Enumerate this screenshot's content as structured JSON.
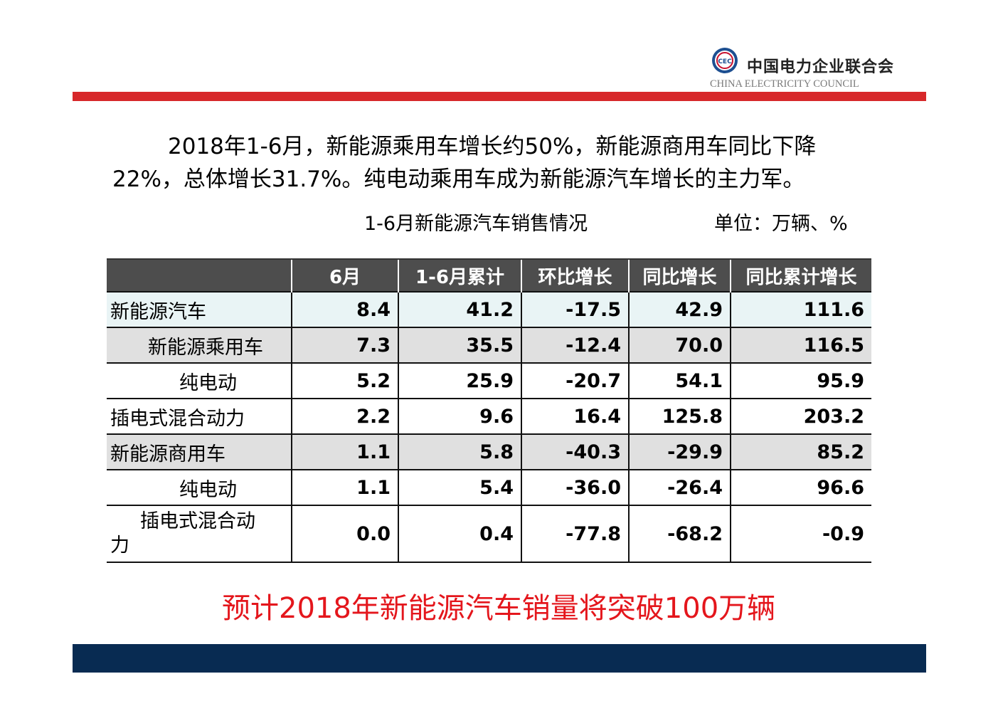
{
  "header": {
    "logo_cn": "中国电力企业联合会",
    "logo_en": "CHINA ELECTRICITY COUNCIL",
    "emblem_icon": "cec-emblem-icon",
    "emblem_letters": "CEC"
  },
  "intro": {
    "line1": "2018年1-6月，新能源乘用车增长约50%，新能源商用车同比下降",
    "line2": "22%，总体增长31.7%。纯电动乘用车成为新能源汽车增长的主力军。"
  },
  "table_title": "1-6月新能源汽车销售情况",
  "unit": "单位：万辆、%",
  "table": {
    "columns": [
      "",
      "6月",
      "1-6月累计",
      "环比增长",
      "同比增长",
      "同比累计增长"
    ],
    "rows": [
      {
        "name": "新能源汽车",
        "values": [
          "8.4",
          "41.2",
          "-17.5",
          "42.9",
          "111.6"
        ]
      },
      {
        "name": "新能源乘用车",
        "values": [
          "7.3",
          "35.5",
          "-12.4",
          "70.0",
          "116.5"
        ]
      },
      {
        "name": "纯电动",
        "values": [
          "5.2",
          "25.9",
          "-20.7",
          "54.1",
          "95.9"
        ]
      },
      {
        "name": "插电式混合动力",
        "values": [
          "2.2",
          "9.6",
          "16.4",
          "125.8",
          "203.2"
        ]
      },
      {
        "name": "新能源商用车",
        "values": [
          "1.1",
          "5.8",
          "-40.3",
          "-29.9",
          "85.2"
        ]
      },
      {
        "name": "纯电动",
        "values": [
          "1.1",
          "5.4",
          "-36.0",
          "-26.4",
          "96.6"
        ]
      },
      {
        "name_line1": "插电式混合动",
        "name_line2": "力",
        "values": [
          "0.0",
          "0.4",
          "-77.8",
          "-68.2",
          "-0.9"
        ]
      }
    ]
  },
  "forecast": "预计2018年新能源汽车销量将突破100万辆",
  "colors": {
    "red_bar": "#d7282a",
    "navy_bar": "#082b52",
    "forecast_text": "#e4161c",
    "header_bg": "#4d4d4d"
  }
}
